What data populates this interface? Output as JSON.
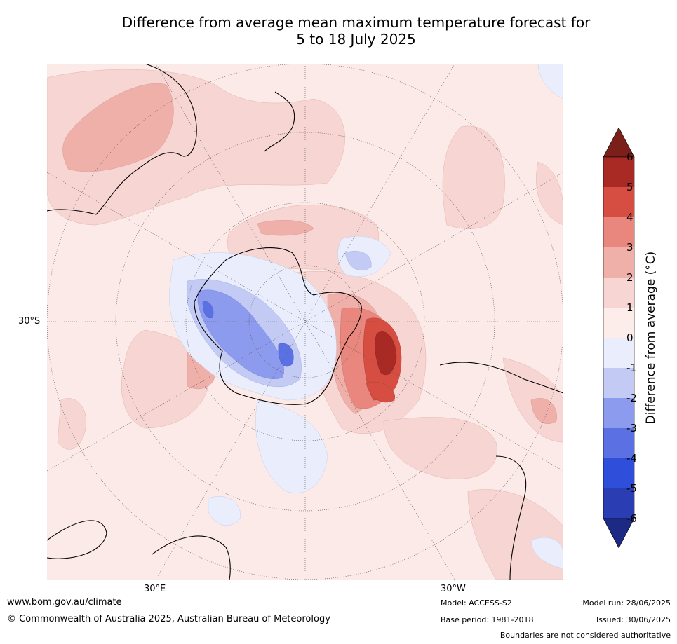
{
  "title": {
    "line1": "Difference from average mean maximum temperature forecast for",
    "line2": "5 to 18 July 2025"
  },
  "axes": {
    "lat_label": "30°S",
    "lon_label_left": "30°E",
    "lon_label_right": "30°W"
  },
  "colorbar": {
    "title": "Difference from average (°C)",
    "ticks": [
      "6",
      "5",
      "4",
      "3",
      "2",
      "1",
      "0",
      "-1",
      "-2",
      "-3",
      "-4",
      "-5",
      "-6"
    ],
    "colors": [
      "#7a1f1a",
      "#a92a24",
      "#d64d42",
      "#e9877f",
      "#efb0aa",
      "#f6d5d2",
      "#fcecea",
      "#eaeefc",
      "#c3cbf5",
      "#8c9bed",
      "#5b70e3",
      "#2f4fdb",
      "#2a3db3",
      "#1c2a85"
    ]
  },
  "footer": {
    "website": "www.bom.gov.au/climate",
    "copyright": "© Commonwealth of Australia 2025, Australian Bureau of Meteorology",
    "model": "Model: ACCESS-S2",
    "base_period": "Base period: 1981-2018",
    "model_run": "Model run: 28/06/2025",
    "issued": "Issued: 30/06/2025",
    "disclaimer": "Boundaries are not considered authoritative"
  }
}
